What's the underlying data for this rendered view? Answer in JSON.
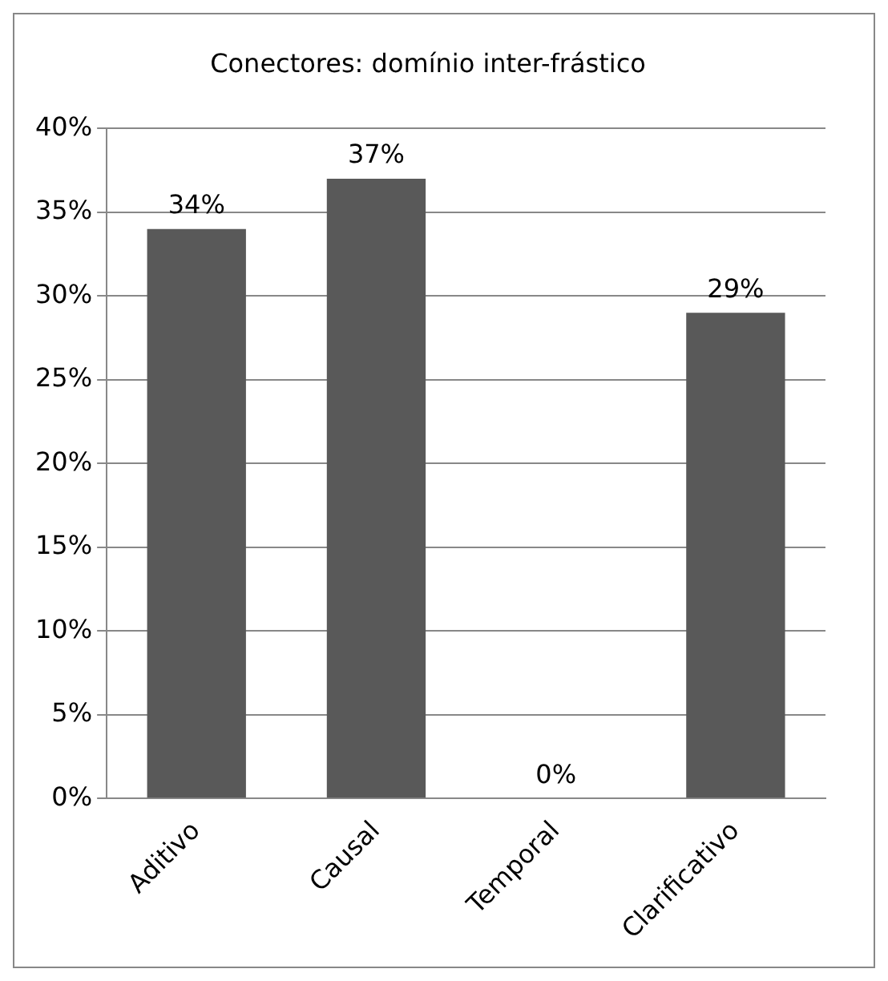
{
  "chart_data": {
    "type": "bar",
    "title": "Conectores: domínio inter-frástico",
    "categories": [
      "Aditivo",
      "Causal",
      "Temporal",
      "Clarificativo"
    ],
    "values": [
      34,
      37,
      0,
      29
    ],
    "color": "#595959",
    "ylim": [
      0,
      40
    ],
    "yticks": [
      {
        "value": 0,
        "label": "0%"
      },
      {
        "value": 5,
        "label": "5%"
      },
      {
        "value": 10,
        "label": "10%"
      },
      {
        "value": 15,
        "label": "15%"
      },
      {
        "value": 20,
        "label": "20%"
      },
      {
        "value": 25,
        "label": "25%"
      },
      {
        "value": 30,
        "label": "30%"
      },
      {
        "value": 35,
        "label": "35%"
      },
      {
        "value": 40,
        "label": "40%"
      }
    ],
    "value_labels": [
      "34%",
      "37%",
      "0%",
      "29%"
    ],
    "grid": "y"
  }
}
